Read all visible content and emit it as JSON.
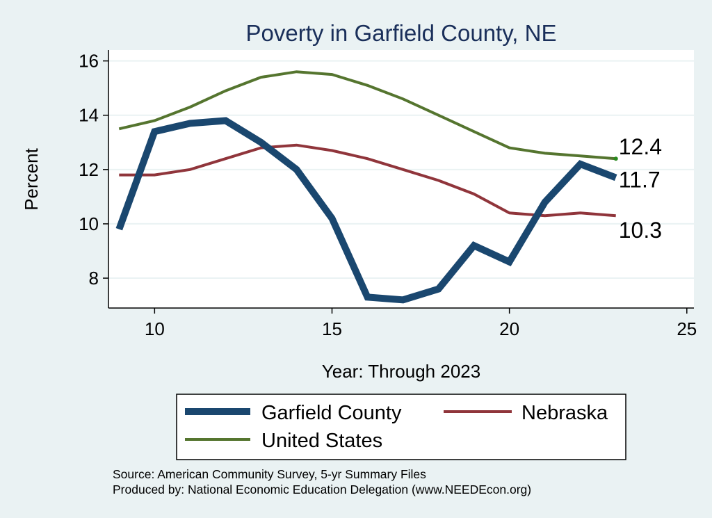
{
  "chart_data": {
    "type": "line",
    "title": "Poverty in Garfield County, NE",
    "xlabel": "Year: Through 2023",
    "ylabel": "Percent",
    "xlim": [
      8.7,
      25.2
    ],
    "ylim": [
      6.9,
      16.4
    ],
    "xticks": [
      10,
      15,
      20,
      25
    ],
    "yticks": [
      8,
      10,
      12,
      14,
      16
    ],
    "grid": true,
    "x": [
      9,
      10,
      11,
      12,
      13,
      14,
      15,
      16,
      17,
      18,
      19,
      20,
      21,
      22,
      23
    ],
    "series": [
      {
        "name": "Garfield County",
        "color": "#1a476f",
        "values": [
          9.8,
          13.4,
          13.7,
          13.8,
          13.0,
          12.0,
          10.2,
          7.3,
          7.2,
          7.6,
          9.2,
          8.6,
          10.8,
          12.2,
          11.7
        ],
        "end_label": "11.7"
      },
      {
        "name": "Nebraska",
        "color": "#90353b",
        "values": [
          11.8,
          11.8,
          12.0,
          12.4,
          12.8,
          12.9,
          12.7,
          12.4,
          12.0,
          11.6,
          11.1,
          10.4,
          10.3,
          10.4,
          10.3
        ],
        "end_label": "10.3"
      },
      {
        "name": "United States",
        "color": "#55752f",
        "values": [
          13.5,
          13.8,
          14.3,
          14.9,
          15.4,
          15.6,
          15.5,
          15.1,
          14.6,
          14.0,
          13.4,
          12.8,
          12.6,
          12.5,
          12.4
        ],
        "end_label": "12.4"
      }
    ],
    "legend": {
      "position": "bottom",
      "order": [
        "Garfield County",
        "Nebraska",
        "United States"
      ]
    }
  },
  "footer": {
    "source": "Source: American Community Survey, 5-yr Summary Files",
    "produced_by": "Produced by: National Economic Education Delegation (www.NEEDEcon.org)"
  },
  "colors": {
    "background": "#eaf2f3",
    "plot_background": "#ffffff",
    "grid": "#eaf2f3",
    "title": "#1a2f5a"
  }
}
